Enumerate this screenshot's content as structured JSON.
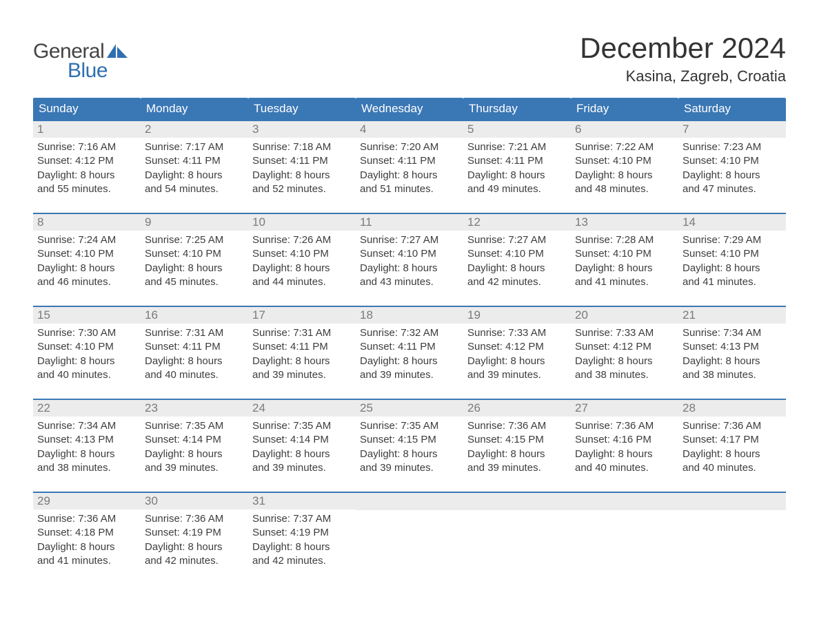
{
  "brand": {
    "word1": "General",
    "word2": "Blue"
  },
  "title": "December 2024",
  "location": "Kasina, Zagreb, Croatia",
  "colors": {
    "header_bg": "#3a77b5",
    "header_text": "#ffffff",
    "day_number_bg": "#ececec",
    "day_number_text": "#7a7a7a",
    "body_text": "#3d3d3d",
    "rule_color": "#3a77b5",
    "brand_blue": "#2f6fb0",
    "brand_gray": "#444444",
    "page_bg": "#ffffff"
  },
  "day_headers": [
    "Sunday",
    "Monday",
    "Tuesday",
    "Wednesday",
    "Thursday",
    "Friday",
    "Saturday"
  ],
  "weeks": [
    [
      {
        "n": "1",
        "sr": "Sunrise: 7:16 AM",
        "ss": "Sunset: 4:12 PM",
        "d1": "Daylight: 8 hours",
        "d2": "and 55 minutes."
      },
      {
        "n": "2",
        "sr": "Sunrise: 7:17 AM",
        "ss": "Sunset: 4:11 PM",
        "d1": "Daylight: 8 hours",
        "d2": "and 54 minutes."
      },
      {
        "n": "3",
        "sr": "Sunrise: 7:18 AM",
        "ss": "Sunset: 4:11 PM",
        "d1": "Daylight: 8 hours",
        "d2": "and 52 minutes."
      },
      {
        "n": "4",
        "sr": "Sunrise: 7:20 AM",
        "ss": "Sunset: 4:11 PM",
        "d1": "Daylight: 8 hours",
        "d2": "and 51 minutes."
      },
      {
        "n": "5",
        "sr": "Sunrise: 7:21 AM",
        "ss": "Sunset: 4:11 PM",
        "d1": "Daylight: 8 hours",
        "d2": "and 49 minutes."
      },
      {
        "n": "6",
        "sr": "Sunrise: 7:22 AM",
        "ss": "Sunset: 4:10 PM",
        "d1": "Daylight: 8 hours",
        "d2": "and 48 minutes."
      },
      {
        "n": "7",
        "sr": "Sunrise: 7:23 AM",
        "ss": "Sunset: 4:10 PM",
        "d1": "Daylight: 8 hours",
        "d2": "and 47 minutes."
      }
    ],
    [
      {
        "n": "8",
        "sr": "Sunrise: 7:24 AM",
        "ss": "Sunset: 4:10 PM",
        "d1": "Daylight: 8 hours",
        "d2": "and 46 minutes."
      },
      {
        "n": "9",
        "sr": "Sunrise: 7:25 AM",
        "ss": "Sunset: 4:10 PM",
        "d1": "Daylight: 8 hours",
        "d2": "and 45 minutes."
      },
      {
        "n": "10",
        "sr": "Sunrise: 7:26 AM",
        "ss": "Sunset: 4:10 PM",
        "d1": "Daylight: 8 hours",
        "d2": "and 44 minutes."
      },
      {
        "n": "11",
        "sr": "Sunrise: 7:27 AM",
        "ss": "Sunset: 4:10 PM",
        "d1": "Daylight: 8 hours",
        "d2": "and 43 minutes."
      },
      {
        "n": "12",
        "sr": "Sunrise: 7:27 AM",
        "ss": "Sunset: 4:10 PM",
        "d1": "Daylight: 8 hours",
        "d2": "and 42 minutes."
      },
      {
        "n": "13",
        "sr": "Sunrise: 7:28 AM",
        "ss": "Sunset: 4:10 PM",
        "d1": "Daylight: 8 hours",
        "d2": "and 41 minutes."
      },
      {
        "n": "14",
        "sr": "Sunrise: 7:29 AM",
        "ss": "Sunset: 4:10 PM",
        "d1": "Daylight: 8 hours",
        "d2": "and 41 minutes."
      }
    ],
    [
      {
        "n": "15",
        "sr": "Sunrise: 7:30 AM",
        "ss": "Sunset: 4:10 PM",
        "d1": "Daylight: 8 hours",
        "d2": "and 40 minutes."
      },
      {
        "n": "16",
        "sr": "Sunrise: 7:31 AM",
        "ss": "Sunset: 4:11 PM",
        "d1": "Daylight: 8 hours",
        "d2": "and 40 minutes."
      },
      {
        "n": "17",
        "sr": "Sunrise: 7:31 AM",
        "ss": "Sunset: 4:11 PM",
        "d1": "Daylight: 8 hours",
        "d2": "and 39 minutes."
      },
      {
        "n": "18",
        "sr": "Sunrise: 7:32 AM",
        "ss": "Sunset: 4:11 PM",
        "d1": "Daylight: 8 hours",
        "d2": "and 39 minutes."
      },
      {
        "n": "19",
        "sr": "Sunrise: 7:33 AM",
        "ss": "Sunset: 4:12 PM",
        "d1": "Daylight: 8 hours",
        "d2": "and 39 minutes."
      },
      {
        "n": "20",
        "sr": "Sunrise: 7:33 AM",
        "ss": "Sunset: 4:12 PM",
        "d1": "Daylight: 8 hours",
        "d2": "and 38 minutes."
      },
      {
        "n": "21",
        "sr": "Sunrise: 7:34 AM",
        "ss": "Sunset: 4:13 PM",
        "d1": "Daylight: 8 hours",
        "d2": "and 38 minutes."
      }
    ],
    [
      {
        "n": "22",
        "sr": "Sunrise: 7:34 AM",
        "ss": "Sunset: 4:13 PM",
        "d1": "Daylight: 8 hours",
        "d2": "and 38 minutes."
      },
      {
        "n": "23",
        "sr": "Sunrise: 7:35 AM",
        "ss": "Sunset: 4:14 PM",
        "d1": "Daylight: 8 hours",
        "d2": "and 39 minutes."
      },
      {
        "n": "24",
        "sr": "Sunrise: 7:35 AM",
        "ss": "Sunset: 4:14 PM",
        "d1": "Daylight: 8 hours",
        "d2": "and 39 minutes."
      },
      {
        "n": "25",
        "sr": "Sunrise: 7:35 AM",
        "ss": "Sunset: 4:15 PM",
        "d1": "Daylight: 8 hours",
        "d2": "and 39 minutes."
      },
      {
        "n": "26",
        "sr": "Sunrise: 7:36 AM",
        "ss": "Sunset: 4:15 PM",
        "d1": "Daylight: 8 hours",
        "d2": "and 39 minutes."
      },
      {
        "n": "27",
        "sr": "Sunrise: 7:36 AM",
        "ss": "Sunset: 4:16 PM",
        "d1": "Daylight: 8 hours",
        "d2": "and 40 minutes."
      },
      {
        "n": "28",
        "sr": "Sunrise: 7:36 AM",
        "ss": "Sunset: 4:17 PM",
        "d1": "Daylight: 8 hours",
        "d2": "and 40 minutes."
      }
    ],
    [
      {
        "n": "29",
        "sr": "Sunrise: 7:36 AM",
        "ss": "Sunset: 4:18 PM",
        "d1": "Daylight: 8 hours",
        "d2": "and 41 minutes."
      },
      {
        "n": "30",
        "sr": "Sunrise: 7:36 AM",
        "ss": "Sunset: 4:19 PM",
        "d1": "Daylight: 8 hours",
        "d2": "and 42 minutes."
      },
      {
        "n": "31",
        "sr": "Sunrise: 7:37 AM",
        "ss": "Sunset: 4:19 PM",
        "d1": "Daylight: 8 hours",
        "d2": "and 42 minutes."
      },
      null,
      null,
      null,
      null
    ]
  ]
}
